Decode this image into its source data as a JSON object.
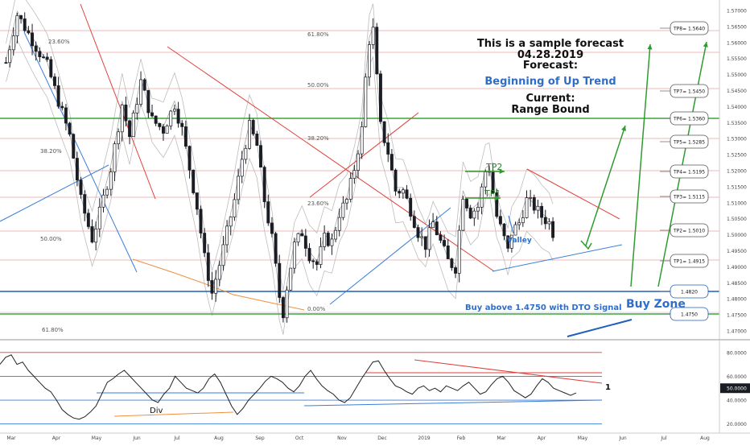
{
  "colors": {
    "candle": "#1b1d24",
    "red_line": "#e0403a",
    "blue_line": "#3a7ed8",
    "green_line": "#2e9b2e",
    "orange_line": "#f0903c",
    "fib_red": "#e8a0a0",
    "band": "#bdbdbd",
    "level_blue": "#1f5fbf",
    "level_green": "#3aa63a",
    "text_blue": "#2f6ec8",
    "annotation_green": "#2e7d32"
  },
  "forecast": {
    "title": "This is a sample forecast",
    "date": "04.28.2019",
    "label": "Forecast:",
    "value": "Beginning of Up Trend",
    "current_label": "Current:",
    "current_value": "Range Bound"
  },
  "annotations": {
    "tp1": "TP1",
    "tp2": "TP2",
    "valley": "Valley",
    "buy_signal": "Buy above 1.4750 with DTO Signal",
    "buy_zone": "Buy Zone",
    "div": "Div",
    "dto_marker": "1"
  },
  "chart_data": [
    {
      "type": "candlestick",
      "instrument_note": "price chart",
      "y_axis_ticks": [
        "1.57000",
        "1.56500",
        "1.56000",
        "1.55500",
        "1.55000",
        "1.54500",
        "1.54000",
        "1.53500",
        "1.53000",
        "1.52500",
        "1.52000",
        "1.51500",
        "1.51000",
        "1.50500",
        "1.50000",
        "1.49500",
        "1.49000",
        "1.48500",
        "1.48000",
        "1.47500",
        "1.47000"
      ],
      "ylim": [
        1.4675,
        1.572
      ],
      "x_axis_ticks": [
        "Mar",
        "Apr",
        "May",
        "Jun",
        "Jul",
        "Aug",
        "Sep",
        "Oct",
        "Nov",
        "Dec",
        "2019",
        "Feb",
        "Mar",
        "Apr",
        "May",
        "Jun",
        "Jul",
        "Aug"
      ],
      "targets": [
        {
          "label": "TP8= 1.5640",
          "value": 1.564
        },
        {
          "label": "TP7= 1.5450",
          "value": 1.545
        },
        {
          "label": "TP6= 1.5360",
          "value": 1.536
        },
        {
          "label": "TP5= 1.5285",
          "value": 1.5285
        },
        {
          "label": "TP4= 1.5195",
          "value": 1.5195
        },
        {
          "label": "TP3= 1.5115",
          "value": 1.5115
        },
        {
          "label": "TP2= 1.5010",
          "value": 1.501
        },
        {
          "label": "TP1= 1.4915",
          "value": 1.4915
        },
        {
          "label": "1.4820",
          "value": 1.482
        },
        {
          "label": "1.4750",
          "value": 1.475
        }
      ],
      "fib_labels": [
        "23.60%",
        "61.80%",
        "50.00%",
        "38.20%",
        "38.20%",
        "23.60%",
        "50.00%",
        "0.00%",
        "61.80%"
      ],
      "price_path": [
        [
          0,
          1.553
        ],
        [
          3,
          1.568
        ],
        [
          7,
          1.56
        ],
        [
          11,
          1.552
        ],
        [
          14,
          1.541
        ],
        [
          17,
          1.53
        ],
        [
          20,
          1.51
        ],
        [
          23,
          1.498
        ],
        [
          25,
          1.506
        ],
        [
          28,
          1.52
        ],
        [
          31,
          1.54
        ],
        [
          33,
          1.53
        ],
        [
          36,
          1.547
        ],
        [
          39,
          1.535
        ],
        [
          42,
          1.532
        ],
        [
          45,
          1.54
        ],
        [
          47,
          1.532
        ],
        [
          49,
          1.52
        ],
        [
          51,
          1.508
        ],
        [
          53,
          1.492
        ],
        [
          55,
          1.481
        ],
        [
          57,
          1.49
        ],
        [
          59,
          1.5
        ],
        [
          61,
          1.51
        ],
        [
          63,
          1.523
        ],
        [
          65,
          1.533
        ],
        [
          67,
          1.527
        ],
        [
          69,
          1.51
        ],
        [
          71,
          1.498
        ],
        [
          73,
          1.48
        ],
        [
          74,
          1.475
        ],
        [
          75,
          1.483
        ],
        [
          77,
          1.496
        ],
        [
          79,
          1.5
        ],
        [
          81,
          1.493
        ],
        [
          83,
          1.49
        ],
        [
          85,
          1.498
        ],
        [
          87,
          1.497
        ],
        [
          89,
          1.506
        ],
        [
          91,
          1.51
        ],
        [
          93,
          1.52
        ],
        [
          95,
          1.532
        ],
        [
          96,
          1.548
        ],
        [
          97,
          1.56
        ],
        [
          98,
          1.563
        ],
        [
          99,
          1.548
        ],
        [
          100,
          1.533
        ],
        [
          102,
          1.525
        ],
        [
          104,
          1.513
        ],
        [
          106,
          1.513
        ],
        [
          108,
          1.507
        ],
        [
          110,
          1.5
        ],
        [
          112,
          1.496
        ],
        [
          114,
          1.503
        ],
        [
          116,
          1.497
        ],
        [
          118,
          1.491
        ],
        [
          120,
          1.489
        ],
        [
          122,
          1.512
        ],
        [
          124,
          1.506
        ],
        [
          126,
          1.508
        ],
        [
          128,
          1.519
        ],
        [
          129,
          1.52
        ],
        [
          131,
          1.505
        ],
        [
          133,
          1.498
        ],
        [
          134,
          1.494
        ],
        [
          135,
          1.5
        ],
        [
          137,
          1.503
        ],
        [
          139,
          1.51
        ],
        [
          141,
          1.508
        ],
        [
          143,
          1.505
        ],
        [
          145,
          1.503
        ],
        [
          146,
          1.5
        ]
      ]
    },
    {
      "type": "line",
      "name": "DTO",
      "y_axis_ticks": [
        "80.0000",
        "60.0000",
        "50.0000",
        "40.0000",
        "20.0000"
      ],
      "ylim": [
        15,
        88
      ],
      "levels": [
        80,
        60,
        40,
        20
      ],
      "values": [
        70,
        76,
        78,
        70,
        72,
        65,
        60,
        55,
        50,
        47,
        40,
        32,
        28,
        25,
        24,
        26,
        30,
        35,
        45,
        55,
        58,
        62,
        65,
        60,
        55,
        50,
        45,
        40,
        38,
        45,
        50,
        60,
        55,
        50,
        48,
        46,
        50,
        58,
        62,
        55,
        45,
        35,
        28,
        33,
        40,
        45,
        50,
        56,
        60,
        58,
        55,
        50,
        47,
        52,
        60,
        65,
        58,
        52,
        48,
        45,
        40,
        38,
        42,
        50,
        58,
        65,
        72,
        73,
        65,
        58,
        52,
        50,
        47,
        45,
        50,
        52,
        48,
        50,
        47,
        52,
        50,
        48,
        52,
        55,
        50,
        45,
        47,
        53,
        58,
        60,
        55,
        48,
        45,
        42,
        45,
        52,
        58,
        55,
        50,
        48,
        46,
        44,
        46
      ]
    }
  ]
}
